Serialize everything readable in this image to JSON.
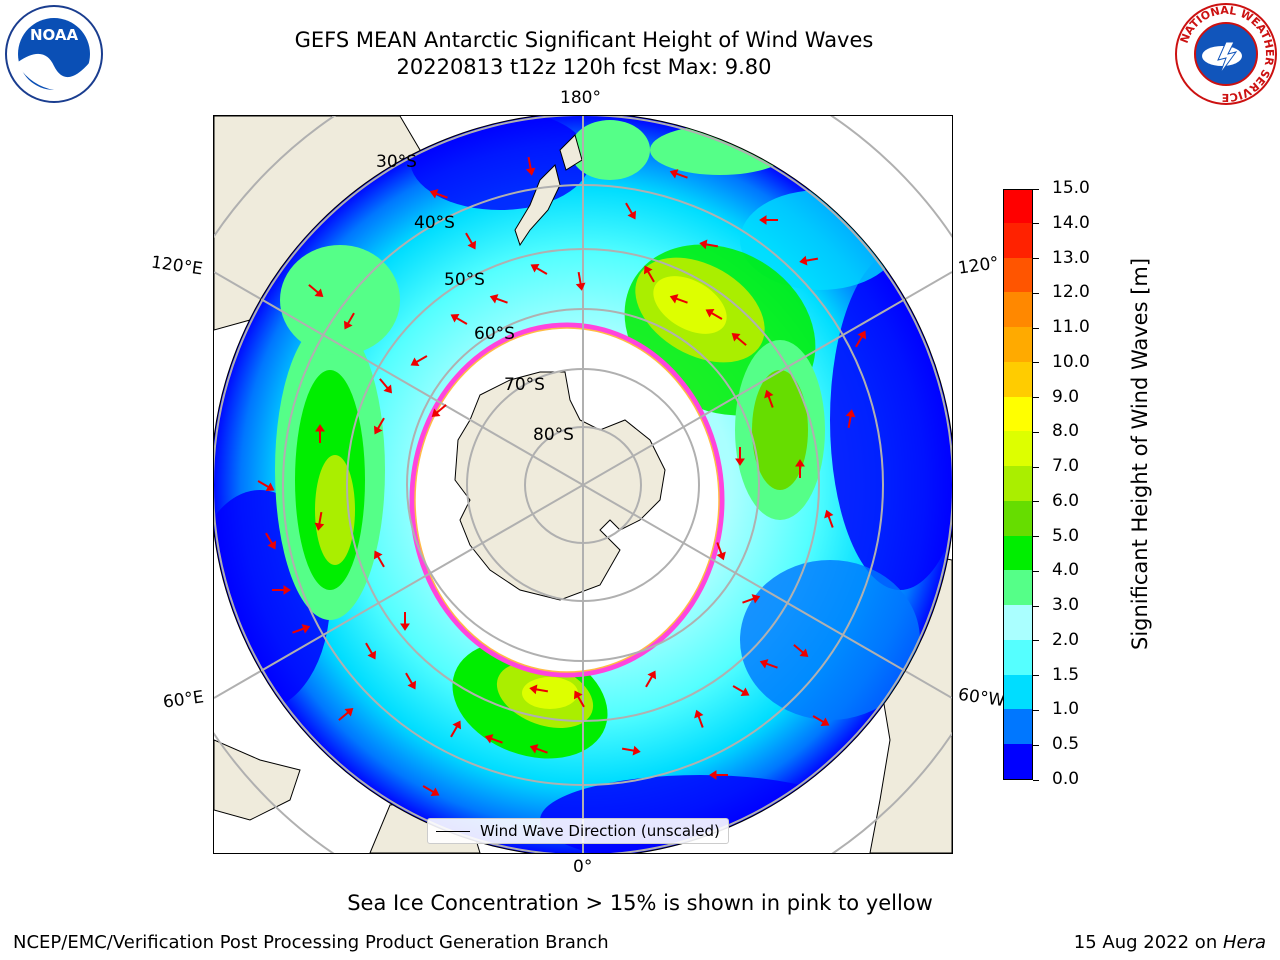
{
  "title_line1": "GEFS MEAN Antarctic Significant Height of Wind Waves",
  "title_line2": "20220813 t12z 120h fcst   Max: 9.80",
  "logos": {
    "left": "NOAA",
    "right": "NATIONAL WEATHER SERVICE"
  },
  "lon_labels": {
    "top": "180°",
    "bottom": "0°",
    "left_upper": "120°E",
    "left_lower": "60°E",
    "right_upper": "120°",
    "right_lower": "60°W"
  },
  "lat_labels": [
    "30°S",
    "40°S",
    "50°S",
    "60°S",
    "70°S",
    "80°S"
  ],
  "legend": {
    "label": "Wind Wave Direction (unscaled)"
  },
  "colorbar": {
    "label": "Significant Height of Wind Waves [m]",
    "ticks": [
      "0.0",
      "0.5",
      "1.0",
      "1.5",
      "2.0",
      "3.0",
      "4.0",
      "5.0",
      "6.0",
      "7.0",
      "8.0",
      "9.0",
      "10.0",
      "11.0",
      "12.0",
      "13.0",
      "14.0",
      "15.0"
    ],
    "colors": [
      "#0000ff",
      "#0077ff",
      "#00ddff",
      "#55ffff",
      "#aaffff",
      "#55ff88",
      "#00ee00",
      "#66dd00",
      "#aaee00",
      "#ddff00",
      "#ffff00",
      "#ffcc00",
      "#ffaa00",
      "#ff8800",
      "#ff5500",
      "#ff2200",
      "#ff0000"
    ]
  },
  "note": "Sea Ice Concentration > 15% is shown in pink to yellow",
  "footer_left": "NCEP/EMC/Verification Post Processing Product Generation Branch",
  "footer_right_date": "15 Aug 2022 on ",
  "footer_right_machine": "Hera"
}
